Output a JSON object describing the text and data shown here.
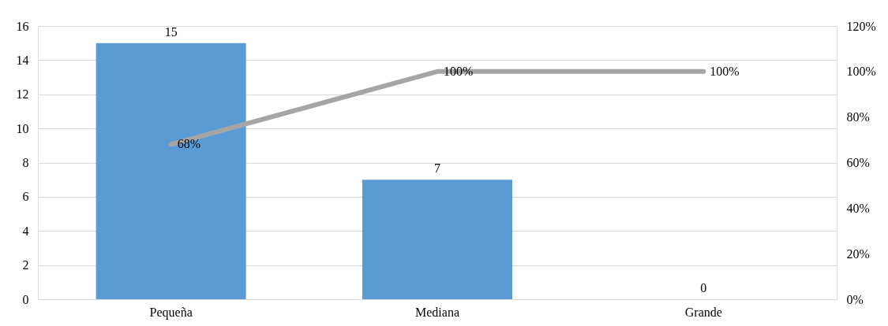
{
  "chart_data": {
    "type": "bar",
    "categories": [
      "Pequeña",
      "Mediana",
      "Grande"
    ],
    "series": [
      {
        "color": "#5b9bd5",
        "values": [
          15,
          7,
          0
        ],
        "value_labels": [
          "15",
          "7",
          "0"
        ]
      },
      {
        "type": "line",
        "axis": "y2",
        "color": "#a5a5a5",
        "values": [
          68,
          100,
          100
        ],
        "value_labels": [
          "68%",
          "100%",
          "100%"
        ]
      }
    ],
    "ylim": [
      0,
      16
    ],
    "yticks": [
      0,
      2,
      4,
      6,
      8,
      10,
      12,
      14,
      16
    ],
    "y2lim": [
      0,
      120
    ],
    "y2ticks": [
      {
        "value": 0,
        "label": "0%"
      },
      {
        "value": 20,
        "label": "20%"
      },
      {
        "value": 40,
        "label": "40%"
      },
      {
        "value": 60,
        "label": "60%"
      },
      {
        "value": 80,
        "label": "80%"
      },
      {
        "value": 100,
        "label": "100%"
      },
      {
        "value": 120,
        "label": "120%"
      }
    ],
    "grid": "y"
  }
}
